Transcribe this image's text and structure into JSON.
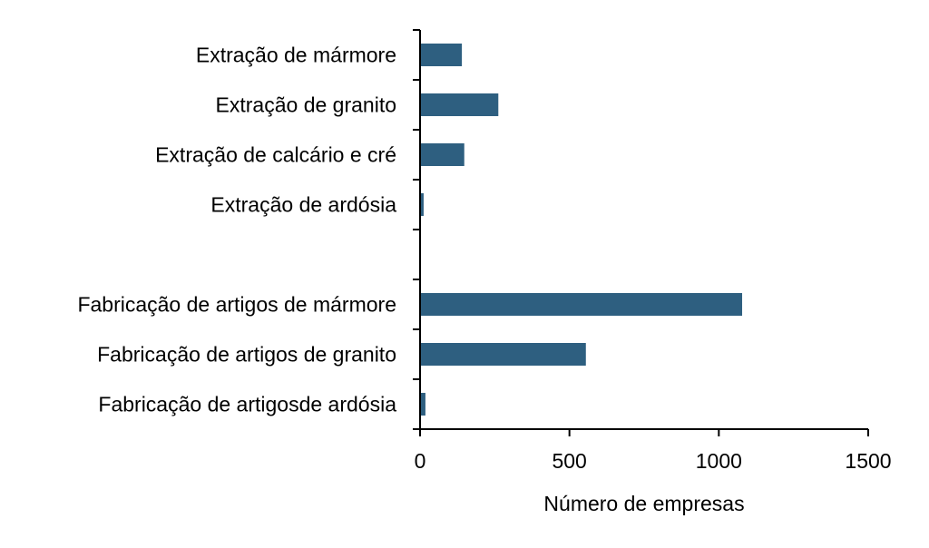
{
  "chart_data": {
    "type": "bar",
    "orientation": "horizontal",
    "categories": [
      "Extração de mármore",
      "Extração de granito",
      "Extração de calcário e cré",
      "Extração de ardósia",
      "",
      "Fabricação de artigos de mármore",
      "Fabricação de artigos de granito",
      "Fabricação de artigosde ardósia"
    ],
    "values": [
      140,
      262,
      148,
      12,
      null,
      1078,
      555,
      18
    ],
    "xlabel": "Número de empresas",
    "ylabel": "",
    "xlim": [
      0,
      1500
    ],
    "xticks": [
      "0",
      "500",
      "1000",
      "1500"
    ],
    "xtick_values": [
      0,
      500,
      1000,
      1500
    ],
    "grid": false,
    "legend": "none",
    "bar_color": "#2e5f80",
    "axis_color": "#000000"
  }
}
